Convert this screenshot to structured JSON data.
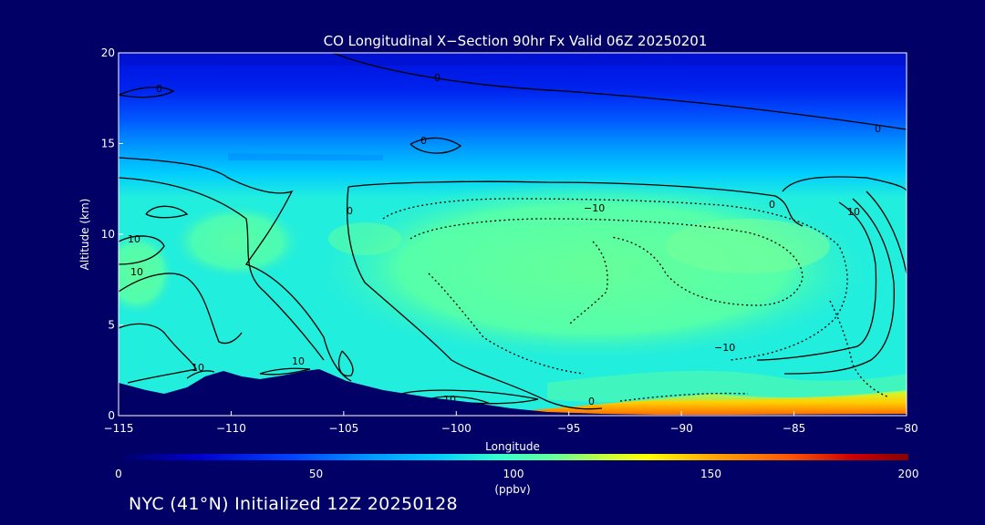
{
  "chart_data": {
    "type": "heatmap",
    "title": "CO Longitudinal X−Section 90hr  Fx Valid 06Z 20250201",
    "xlabel": "Longitude",
    "ylabel": "Altitude (km)",
    "xlim": [
      -115,
      -80
    ],
    "ylim": [
      0,
      20
    ],
    "x_ticks": [
      -115,
      -110,
      -105,
      -100,
      -95,
      -90,
      -85,
      -80
    ],
    "x_tick_labels": [
      "−115",
      "−110",
      "−105",
      "−100",
      "−95",
      "−90",
      "−85",
      "−80"
    ],
    "y_ticks": [
      0,
      5,
      10,
      15,
      20
    ],
    "y_tick_labels": [
      "0",
      "5",
      "10",
      "15",
      "20"
    ],
    "colorbar": {
      "label": "(ppbv)",
      "range": [
        0,
        200
      ],
      "ticks": [
        0,
        50,
        100,
        150,
        200
      ],
      "tick_labels": [
        "0",
        "50",
        "100",
        "150",
        "200"
      ],
      "colormap": [
        "#000066",
        "#0000cc",
        "#0044ff",
        "#0099ff",
        "#00ccff",
        "#33ffcc",
        "#66ff99",
        "#ccff33",
        "#ffff00",
        "#ffaa00",
        "#ff5500",
        "#cc0000",
        "#880000"
      ]
    },
    "contour_labels": [
      "0",
      "0",
      "0",
      "0",
      "0",
      "−10",
      "10",
      "10",
      "10",
      "10",
      "10",
      "−10",
      "0",
      "0",
      "10"
    ],
    "background_color": "#000066",
    "terrain_color": "#000066"
  },
  "footer": {
    "text": "NYC (41°N) Initialized 12Z 20250128"
  }
}
